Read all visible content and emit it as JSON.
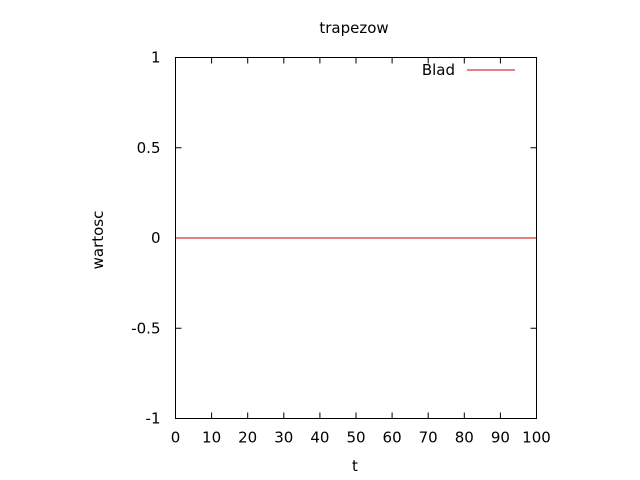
{
  "chart_data": {
    "type": "line",
    "title": "trapezow",
    "xlabel": "t",
    "ylabel": "wartosc",
    "xlim": [
      0,
      100
    ],
    "ylim": [
      -1,
      1
    ],
    "x_ticks": [
      0,
      10,
      20,
      30,
      40,
      50,
      60,
      70,
      80,
      90,
      100
    ],
    "y_ticks": [
      -1,
      -0.5,
      0,
      0.5,
      1
    ],
    "x_tick_labels": [
      "0",
      "10",
      "20",
      "30",
      "40",
      "50",
      "60",
      "70",
      "80",
      "90",
      "100"
    ],
    "y_tick_labels": [
      "-1",
      "-0.5",
      "0",
      "0.5",
      "1"
    ],
    "grid": false,
    "legend_position": "top-right",
    "series": [
      {
        "name": "Blad",
        "color": "#cc0000",
        "x": [
          0,
          100
        ],
        "y": [
          0,
          0
        ]
      }
    ]
  }
}
